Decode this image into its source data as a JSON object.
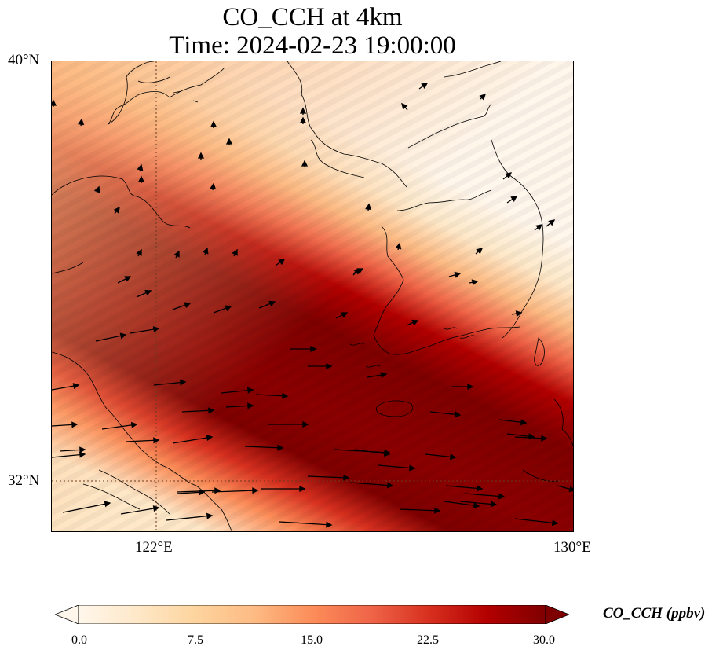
{
  "title": {
    "line1": "CO_CCH at 4km",
    "line2": "Time: 2024-02-23 19:00:00"
  },
  "axes": {
    "lon_ticks": [
      {
        "label": "122°E",
        "value": 122
      },
      {
        "label": "130°E",
        "value": 130
      }
    ],
    "lat_ticks": [
      {
        "label": "40°N",
        "value": 40
      },
      {
        "label": "32°N",
        "value": 32
      }
    ],
    "lon_range": [
      120,
      130
    ],
    "lat_range": [
      31,
      40
    ],
    "gridlines": "dotted"
  },
  "colorbar": {
    "label": "CO_CCH (ppbv)",
    "min": 0.0,
    "max": 30.0,
    "extend": "both",
    "colormap": "OrRd",
    "ticks": [
      "0.0",
      "7.5",
      "15.0",
      "22.5",
      "30.0"
    ],
    "colors": [
      "#fff7ec",
      "#fee8c8",
      "#fdd49e",
      "#fdbb84",
      "#fc8d59",
      "#ef6548",
      "#d7301f",
      "#b30000",
      "#7f0000"
    ]
  },
  "field": {
    "description_free": true,
    "band_center_offset": 0.0
  }
}
